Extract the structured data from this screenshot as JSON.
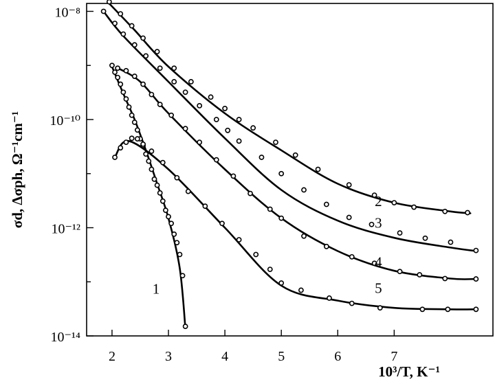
{
  "chart_data": {
    "type": "scatter",
    "xlabel": "10³/T, K⁻¹",
    "ylabel": "σd, Δσph, Ω⁻¹cm⁻¹",
    "xlim": [
      1.55,
      8.75
    ],
    "ylim": [
      1e-14,
      1.4e-08
    ],
    "yscale": "log",
    "x_ticks": [
      2,
      3,
      4,
      5,
      6,
      7
    ],
    "y_tick_labels": [
      "10⁻¹⁴",
      "10⁻¹²",
      "10⁻¹⁰",
      "10⁻⁸"
    ],
    "y_tick_exponents": [
      -14,
      -12,
      -10,
      -8
    ],
    "grid": false,
    "series": [
      {
        "name": "1",
        "line": [
          [
            2.0,
            9.5e-10
          ],
          [
            2.2,
            3e-10
          ],
          [
            2.4,
            1e-10
          ],
          [
            2.6,
            2.7e-11
          ],
          [
            2.8,
            6.5e-12
          ],
          [
            3.0,
            1.5e-12
          ],
          [
            3.2,
            1.8e-13
          ],
          [
            3.3,
            1.4e-14
          ]
        ],
        "points": [
          [
            2.0,
            1e-09
          ],
          [
            2.05,
            7.5e-10
          ],
          [
            2.1,
            6e-10
          ],
          [
            2.15,
            4.5e-10
          ],
          [
            2.2,
            3.2e-10
          ],
          [
            2.25,
            2.4e-10
          ],
          [
            2.3,
            1.7e-10
          ],
          [
            2.35,
            1.2e-10
          ],
          [
            2.4,
            8.9e-11
          ],
          [
            2.45,
            6.4e-11
          ],
          [
            2.5,
            4.4e-11
          ],
          [
            2.55,
            3.3e-11
          ],
          [
            2.6,
            2.3e-11
          ],
          [
            2.65,
            1.7e-11
          ],
          [
            2.7,
            1.2e-11
          ],
          [
            2.75,
            7.9e-12
          ],
          [
            2.8,
            6.1e-12
          ],
          [
            2.85,
            4.4e-12
          ],
          [
            2.9,
            3.1e-12
          ],
          [
            2.95,
            2.1e-12
          ],
          [
            3.0,
            1.6e-12
          ],
          [
            3.05,
            1.2e-12
          ],
          [
            3.1,
            7.6e-13
          ],
          [
            3.15,
            5.3e-13
          ],
          [
            3.2,
            3.2e-13
          ],
          [
            3.25,
            1.3e-13
          ],
          [
            3.3,
            1.5e-14
          ]
        ]
      },
      {
        "name": "2",
        "line": [
          [
            1.95,
            1.4e-08
          ],
          [
            2.4,
            4.5e-09
          ],
          [
            3.0,
            9.5e-10
          ],
          [
            4.0,
            1.3e-10
          ],
          [
            5.0,
            2.7e-11
          ],
          [
            6.0,
            6.5e-12
          ],
          [
            7.0,
            2.9e-12
          ],
          [
            8.0,
            2e-12
          ],
          [
            8.35,
            1.85e-12
          ]
        ],
        "points": [
          [
            1.95,
            1.5e-08
          ],
          [
            2.15,
            9e-09
          ],
          [
            2.35,
            5.4e-09
          ],
          [
            2.55,
            3.2e-09
          ],
          [
            2.8,
            1.8e-09
          ],
          [
            3.1,
            8.9e-10
          ],
          [
            3.4,
            5e-10
          ],
          [
            3.75,
            2.6e-10
          ],
          [
            4.0,
            1.6e-10
          ],
          [
            4.25,
            1e-10
          ],
          [
            4.5,
            7e-11
          ],
          [
            4.9,
            3.8e-11
          ],
          [
            5.25,
            2.2e-11
          ],
          [
            5.65,
            1.2e-11
          ],
          [
            6.2,
            6.2e-12
          ],
          [
            6.65,
            4e-12
          ],
          [
            7.0,
            2.9e-12
          ],
          [
            7.35,
            2.4e-12
          ],
          [
            7.9,
            2e-12
          ],
          [
            8.3,
            1.9e-12
          ]
        ]
      },
      {
        "name": "3",
        "line": [
          [
            1.85,
            1e-08
          ],
          [
            2.2,
            3.5e-09
          ],
          [
            3.0,
            5e-10
          ],
          [
            4.0,
            4.5e-11
          ],
          [
            5.0,
            5e-12
          ],
          [
            6.0,
            1.35e-12
          ],
          [
            7.0,
            6.5e-13
          ],
          [
            8.0,
            4.3e-13
          ],
          [
            8.45,
            3.7e-13
          ]
        ],
        "points": [
          [
            1.85,
            1e-08
          ],
          [
            2.05,
            6e-09
          ],
          [
            2.2,
            3.8e-09
          ],
          [
            2.4,
            2.4e-09
          ],
          [
            2.6,
            1.5e-09
          ],
          [
            2.85,
            8.9e-10
          ],
          [
            3.1,
            5e-10
          ],
          [
            3.3,
            3.2e-10
          ],
          [
            3.55,
            1.8e-10
          ],
          [
            3.85,
            1e-10
          ],
          [
            4.05,
            6.3e-11
          ],
          [
            4.25,
            4e-11
          ],
          [
            4.65,
            2e-11
          ],
          [
            5.0,
            1e-11
          ],
          [
            5.4,
            5e-12
          ],
          [
            5.8,
            2.7e-12
          ],
          [
            6.2,
            1.55e-12
          ],
          [
            6.6,
            1.15e-12
          ],
          [
            7.1,
            8e-13
          ],
          [
            7.55,
            6.4e-13
          ],
          [
            8.0,
            5.4e-13
          ],
          [
            8.45,
            3.8e-13
          ]
        ]
      },
      {
        "name": "4",
        "line": [
          [
            2.1,
            9e-10
          ],
          [
            2.5,
            5e-10
          ],
          [
            3.0,
            1.3e-10
          ],
          [
            4.0,
            1.2e-11
          ],
          [
            5.0,
            1.5e-12
          ],
          [
            6.0,
            3.7e-13
          ],
          [
            7.0,
            1.6e-13
          ],
          [
            8.0,
            1.15e-13
          ],
          [
            8.45,
            1.13e-13
          ]
        ],
        "points": [
          [
            2.1,
            8.9e-10
          ],
          [
            2.25,
            8e-10
          ],
          [
            2.4,
            6.3e-10
          ],
          [
            2.55,
            4.5e-10
          ],
          [
            2.7,
            2.9e-10
          ],
          [
            2.85,
            1.9e-10
          ],
          [
            3.05,
            1.2e-10
          ],
          [
            3.3,
            6.8e-11
          ],
          [
            3.55,
            3.8e-11
          ],
          [
            3.85,
            1.8e-11
          ],
          [
            4.15,
            9e-12
          ],
          [
            4.45,
            4.3e-12
          ],
          [
            4.8,
            2.2e-12
          ],
          [
            5.0,
            1.5e-12
          ],
          [
            5.4,
            7e-13
          ],
          [
            5.8,
            4.5e-13
          ],
          [
            6.25,
            2.9e-13
          ],
          [
            6.65,
            2.2e-13
          ],
          [
            7.1,
            1.55e-13
          ],
          [
            7.45,
            1.35e-13
          ],
          [
            7.9,
            1.15e-13
          ],
          [
            8.45,
            1.13e-13
          ]
        ]
      },
      {
        "name": "5",
        "line": [
          [
            2.05,
            2e-11
          ],
          [
            2.3,
            4e-11
          ],
          [
            3.0,
            1.2e-11
          ],
          [
            4.0,
            1e-12
          ],
          [
            5.0,
            8.5e-14
          ],
          [
            6.0,
            4.5e-14
          ],
          [
            7.0,
            3.3e-14
          ],
          [
            8.0,
            3.1e-14
          ],
          [
            8.45,
            3.1e-14
          ]
        ],
        "points": [
          [
            2.05,
            2e-11
          ],
          [
            2.15,
            3e-11
          ],
          [
            2.25,
            3.8e-11
          ],
          [
            2.35,
            4.5e-11
          ],
          [
            2.45,
            4.4e-11
          ],
          [
            2.55,
            3.5e-11
          ],
          [
            2.7,
            2.6e-11
          ],
          [
            2.9,
            1.6e-11
          ],
          [
            3.15,
            8.4e-12
          ],
          [
            3.35,
            4.7e-12
          ],
          [
            3.65,
            2.5e-12
          ],
          [
            3.95,
            1.2e-12
          ],
          [
            4.25,
            6e-13
          ],
          [
            4.55,
            3.2e-13
          ],
          [
            4.8,
            1.7e-13
          ],
          [
            5.0,
            9.5e-14
          ],
          [
            5.35,
            7e-14
          ],
          [
            5.85,
            5e-14
          ],
          [
            6.25,
            4e-14
          ],
          [
            6.75,
            3.3e-14
          ],
          [
            7.5,
            3.1e-14
          ],
          [
            7.95,
            3.1e-14
          ],
          [
            8.45,
            3.1e-14
          ]
        ]
      }
    ],
    "curve_labels": [
      {
        "text": "1",
        "x": 2.78,
        "y": 6e-14
      },
      {
        "text": "2",
        "x": 6.72,
        "y": 2.5e-12
      },
      {
        "text": "3",
        "x": 6.72,
        "y": 1e-12
      },
      {
        "text": "4",
        "x": 6.72,
        "y": 1.9e-13
      },
      {
        "text": "5",
        "x": 6.72,
        "y": 6.2e-14
      }
    ]
  }
}
